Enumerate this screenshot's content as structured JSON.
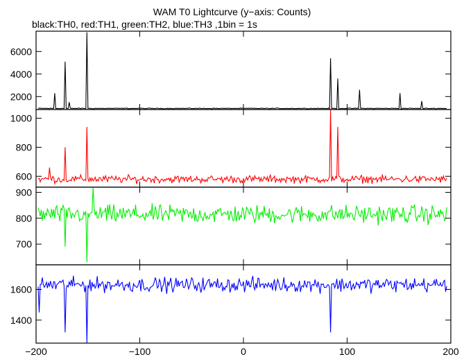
{
  "header": {
    "title": "WAM T0 Lightcurve (y−axis: Counts)",
    "subtitle": "black:TH0, red:TH1, green:TH2, blue:TH3 ,1bin = 1s"
  },
  "colors": {
    "TH0": "#000000",
    "TH1": "#ff0000",
    "TH2": "#00ee00",
    "TH3": "#0000ff"
  },
  "chart_data": {
    "type": "line",
    "title": "WAM T0 Lightcurve (y−axis: Counts)",
    "subtitle": "black:TH0, red:TH1, green:TH2, blue:TH3 ,1bin = 1s",
    "xlim": [
      -200,
      200
    ],
    "xticks": [
      -200,
      -100,
      0,
      100,
      200
    ],
    "xtick_labels": [
      "−200",
      "−100",
      "0",
      "100",
      "200"
    ],
    "panels": [
      {
        "series": "TH0",
        "color": "#000000",
        "ylim": [
          850,
          7800
        ],
        "yticks": [
          2000,
          4000,
          6000
        ],
        "ytick_labels": [
          "2000",
          "4000",
          "6000"
        ],
        "baseline": 950,
        "noise": 30,
        "spikes": [
          [
            -182,
            2300
          ],
          [
            -172,
            5100
          ],
          [
            -168,
            1500
          ],
          [
            -151,
            7700
          ],
          [
            84,
            5400
          ],
          [
            91,
            3600
          ],
          [
            112,
            2600
          ],
          [
            151,
            2300
          ],
          [
            172,
            1600
          ]
        ]
      },
      {
        "series": "TH1",
        "color": "#ff0000",
        "ylim": [
          525,
          1060
        ],
        "yticks": [
          600,
          800,
          1000
        ],
        "ytick_labels": [
          "600",
          "800",
          "1000"
        ],
        "baseline": 580,
        "noise": 22,
        "spikes": [
          [
            -172,
            800
          ],
          [
            -151,
            940
          ],
          [
            84,
            1060
          ],
          [
            91,
            940
          ],
          [
            -187,
            660
          ]
        ]
      },
      {
        "series": "TH2",
        "color": "#00ee00",
        "ylim": [
          620,
          920
        ],
        "yticks": [
          700,
          800,
          900
        ],
        "ytick_labels": [
          "700",
          "800",
          "900"
        ],
        "baseline": 815,
        "noise": 30,
        "spikes": [
          [
            -151,
            630
          ],
          [
            -145,
            920
          ],
          [
            -172,
            690
          ]
        ]
      },
      {
        "series": "TH3",
        "color": "#0000ff",
        "ylim": [
          1250,
          1760
        ],
        "yticks": [
          1400,
          1600
        ],
        "ytick_labels": [
          "1400",
          "1600"
        ],
        "baseline": 1630,
        "noise": 40,
        "spikes": [
          [
            -151,
            1250
          ],
          [
            -172,
            1320
          ],
          [
            84,
            1320
          ],
          [
            -197,
            1450
          ]
        ]
      }
    ]
  }
}
